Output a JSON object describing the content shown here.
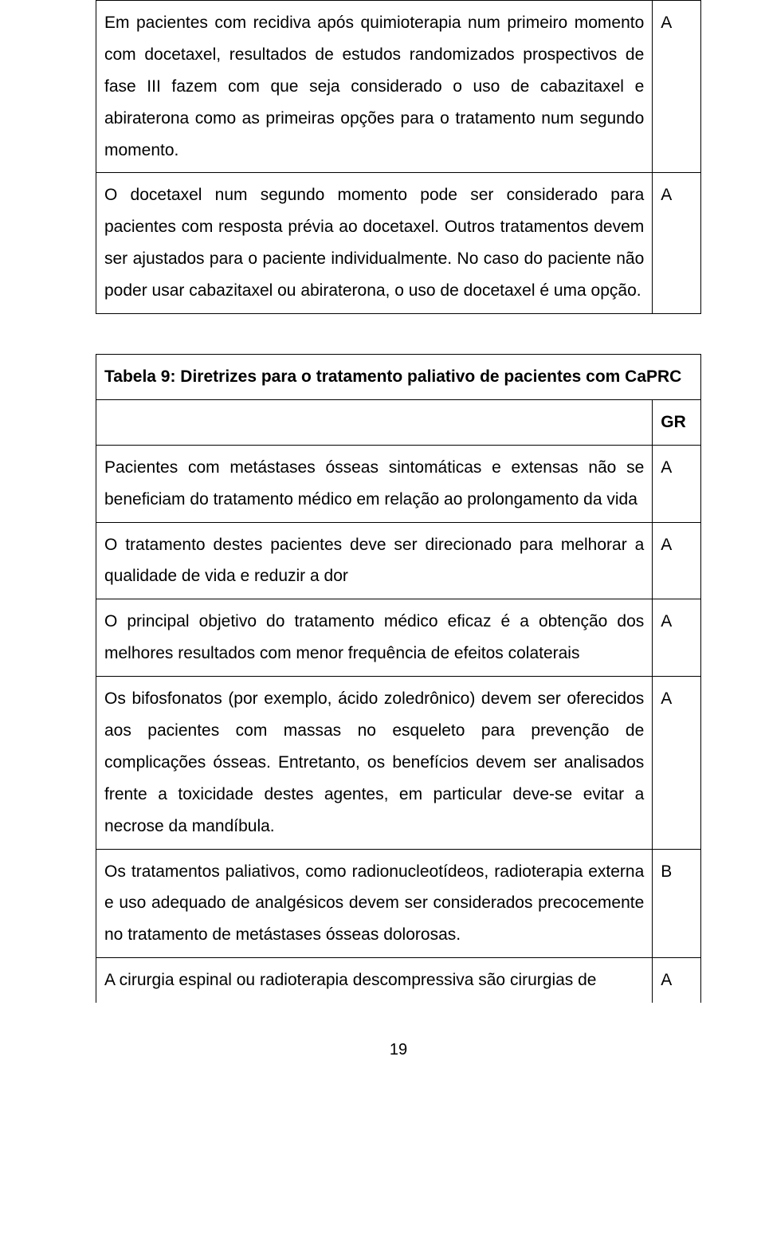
{
  "table1": {
    "rows": [
      {
        "text": "Em pacientes com recidiva após quimioterapia num primeiro momento com docetaxel, resultados de estudos randomizados prospectivos de fase III fazem com que seja considerado o uso de cabazitaxel e abiraterona como as primeiras opções para o tratamento num segundo momento.",
        "grade": "A"
      },
      {
        "text": "O docetaxel num segundo momento pode ser considerado para pacientes com  resposta prévia ao docetaxel. Outros tratamentos devem ser ajustados para o paciente individualmente. No caso do paciente não  poder usar cabazitaxel ou abiraterona, o uso de docetaxel é uma opção.",
        "grade": "A"
      }
    ]
  },
  "table2": {
    "title": "Tabela 9:  Diretrizes para o tratamento paliativo de pacientes com CaPRC",
    "gr_label": "GR",
    "rows": [
      {
        "text": "Pacientes com metástases ósseas sintomáticas e extensas não  se beneficiam do tratamento médico em relação  ao prolongamento da vida",
        "grade": "A"
      },
      {
        "text": "O tratamento destes pacientes deve ser direcionado para melhorar a qualidade de vida e reduzir a dor",
        "grade": "A"
      },
      {
        "text": "O principal objetivo do tratamento médico eficaz é a obtenção dos melhores resultados com menor frequência de efeitos colaterais",
        "grade": "A"
      },
      {
        "text": "Os bifosfonatos (por exemplo, ácido zoledrônico) devem ser oferecidos aos pacientes com massas no esqueleto para prevenção de complicações ósseas. Entretanto, os benefícios devem ser analisados frente a toxicidade destes agentes, em particular deve-se evitar a necrose da mandíbula.",
        "grade": "A"
      },
      {
        "text": "Os tratamentos paliativos, como radionucleotídeos, radioterapia externa e uso adequado de analgésicos devem ser considerados precocemente no tratamento de metástases ósseas dolorosas.",
        "grade": "B"
      },
      {
        "text": "A cirurgia espinal ou radioterapia descompressiva são cirurgias de",
        "grade": "A"
      }
    ]
  },
  "page_number": "19"
}
